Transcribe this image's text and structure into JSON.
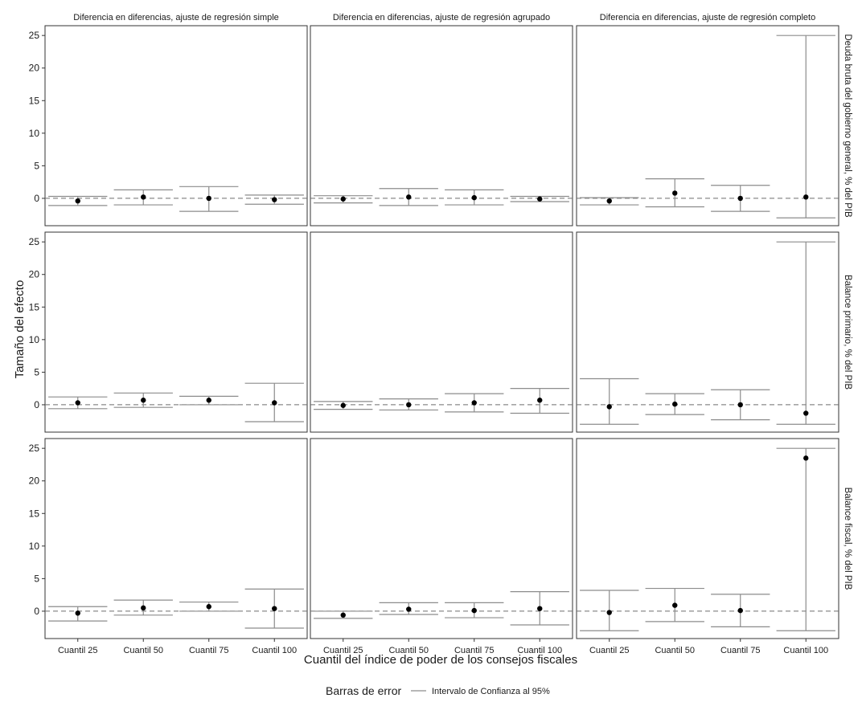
{
  "chart_data": {
    "type": "scatter",
    "style": "facet-grid point estimates with 95% error bars, black-and-white theme, dashed zero line",
    "column_titles": [
      "Diferencia en diferencias, ajuste de regresión simple",
      "Diferencia en diferencias, ajuste de regresión agrupado",
      "Diferencia en diferencias, ajuste de regresión completo"
    ],
    "row_titles": [
      "Deuda bruta del gobierno general, % del PIB",
      "Balance primario, % del PIB",
      "Balance fiscal, % del PIB"
    ],
    "categories": [
      "Cuantil 25",
      "Cuantil 50",
      "Cuantil 75",
      "Cuantil 100"
    ],
    "xlabel": "Cuantil del índice de poder de los consejos fiscales",
    "ylabel": "Tamaño del efecto",
    "ylim": [
      -4.2,
      26.5
    ],
    "yticks": [
      0,
      5,
      10,
      15,
      20,
      25
    ],
    "reference_line": 0,
    "legend": {
      "title": "Barras de error",
      "entry": "Intervalo de Confianza al 95%",
      "position": "bottom"
    },
    "colors": {
      "point": "#000000",
      "errorbar": "#8c8c8c",
      "zero_line": "#6e6e6e",
      "panel_border": "#333333"
    },
    "panels": [
      [
        {
          "point": [
            -0.4,
            0.2,
            0.0,
            -0.2
          ],
          "lower": [
            -1.1,
            -1.0,
            -2.0,
            -0.9
          ],
          "upper": [
            0.3,
            1.3,
            1.8,
            0.5
          ]
        },
        {
          "point": [
            -0.1,
            0.2,
            0.1,
            -0.1
          ],
          "lower": [
            -0.7,
            -1.1,
            -1.0,
            -0.5
          ],
          "upper": [
            0.4,
            1.5,
            1.3,
            0.3
          ]
        },
        {
          "point": [
            -0.4,
            0.8,
            0.0,
            0.2
          ],
          "lower": [
            -1.0,
            -1.3,
            -2.0,
            -3.0
          ],
          "upper": [
            0.1,
            3.0,
            2.0,
            25.0
          ]
        }
      ],
      [
        {
          "point": [
            0.3,
            0.7,
            0.7,
            0.3
          ],
          "lower": [
            -0.6,
            -0.4,
            0.0,
            -2.6
          ],
          "upper": [
            1.2,
            1.8,
            1.3,
            3.3
          ]
        },
        {
          "point": [
            -0.1,
            0.0,
            0.3,
            0.7
          ],
          "lower": [
            -0.7,
            -0.8,
            -1.1,
            -1.3
          ],
          "upper": [
            0.5,
            0.9,
            1.7,
            2.5
          ]
        },
        {
          "point": [
            -0.3,
            0.1,
            0.0,
            -1.3
          ],
          "lower": [
            -3.0,
            -1.5,
            -2.3,
            -3.0
          ],
          "upper": [
            4.0,
            1.7,
            2.3,
            25.0
          ]
        }
      ],
      [
        {
          "point": [
            -0.3,
            0.5,
            0.7,
            0.4
          ],
          "lower": [
            -1.5,
            -0.6,
            0.0,
            -2.6
          ],
          "upper": [
            0.7,
            1.7,
            1.4,
            3.4
          ]
        },
        {
          "point": [
            -0.6,
            0.3,
            0.1,
            0.4
          ],
          "lower": [
            -1.1,
            -0.5,
            -1.0,
            -2.1
          ],
          "upper": [
            0.0,
            1.3,
            1.3,
            3.0
          ]
        },
        {
          "point": [
            -0.2,
            0.9,
            0.1,
            23.5
          ],
          "lower": [
            -3.0,
            -1.6,
            -2.4,
            -3.0
          ],
          "upper": [
            3.2,
            3.5,
            2.6,
            25.0
          ]
        }
      ]
    ]
  }
}
